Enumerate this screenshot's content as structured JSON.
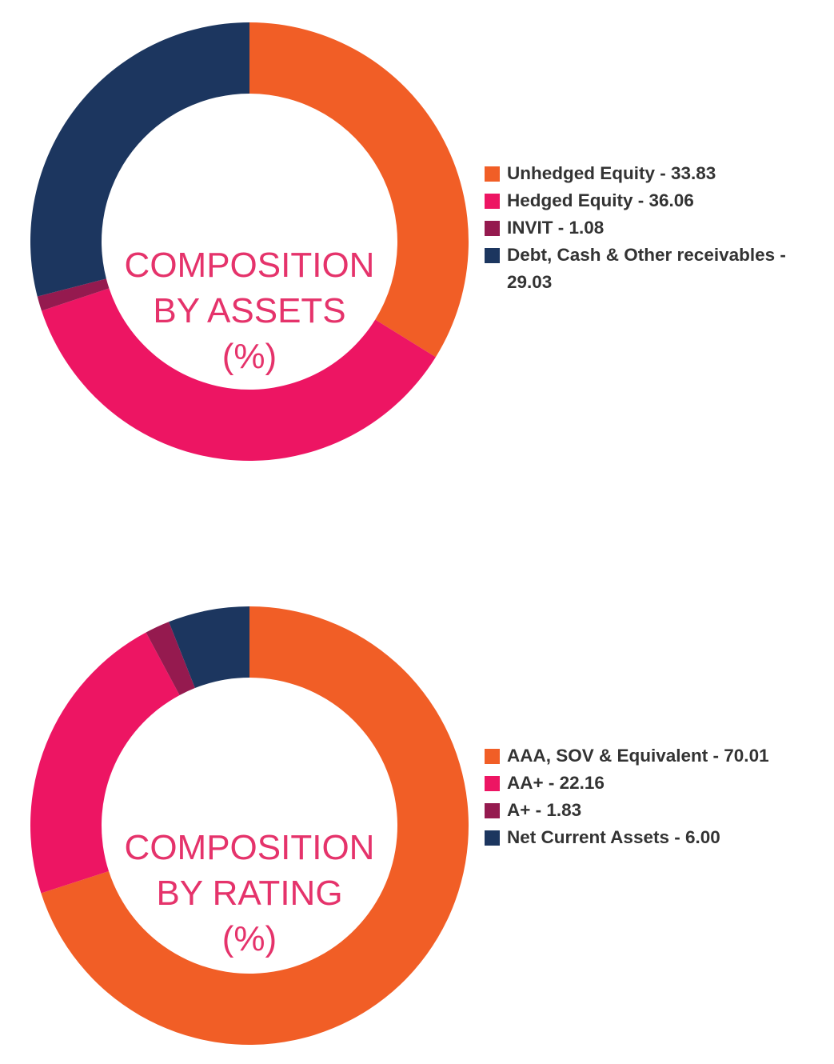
{
  "colors": {
    "orange": "#f15e26",
    "pink": "#ed1563",
    "maroon": "#951a4f",
    "navy": "#1c365f",
    "title": "#e5336b",
    "legend_text": "#333333"
  },
  "chart_data": [
    {
      "type": "pie",
      "donut": true,
      "center_title": [
        "COMPOSITION",
        "BY ASSETS",
        "(%)"
      ],
      "legend_position": "right",
      "series": [
        {
          "name": "Unhedged Equity",
          "value": 33.83,
          "color": "#f15e26",
          "label": "Unhedged Equity - 33.83"
        },
        {
          "name": "Hedged Equity",
          "value": 36.06,
          "color": "#ed1563",
          "label": "Hedged Equity - 36.06"
        },
        {
          "name": "INVIT",
          "value": 1.08,
          "color": "#951a4f",
          "label": "INVIT - 1.08"
        },
        {
          "name": "Debt, Cash & Other receivables",
          "value": 29.03,
          "color": "#1c365f",
          "label": "Debt, Cash & Other receivables - 29.03"
        }
      ]
    },
    {
      "type": "pie",
      "donut": true,
      "center_title": [
        "COMPOSITION",
        "BY RATING",
        "(%)"
      ],
      "legend_position": "right",
      "series": [
        {
          "name": "AAA, SOV & Equivalent",
          "value": 70.01,
          "color": "#f15e26",
          "label": "AAA, SOV & Equivalent - 70.01"
        },
        {
          "name": "AA+",
          "value": 22.16,
          "color": "#ed1563",
          "label": "AA+ - 22.16"
        },
        {
          "name": "A+",
          "value": 1.83,
          "color": "#951a4f",
          "label": "A+ - 1.83"
        },
        {
          "name": "Net Current Assets",
          "value": 6.0,
          "color": "#1c365f",
          "label": "Net Current Assets - 6.00"
        }
      ]
    }
  ]
}
